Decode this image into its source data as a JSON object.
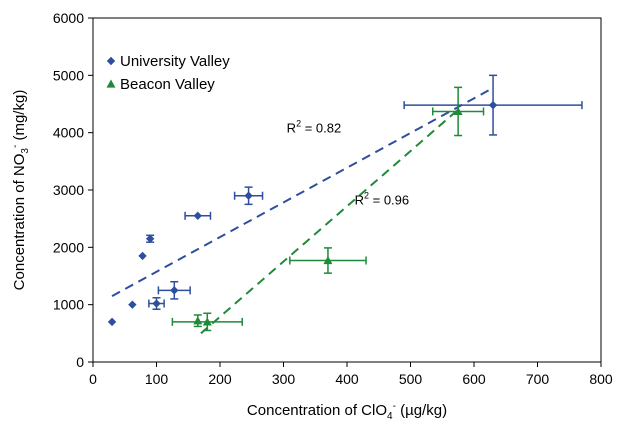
{
  "chart_data": {
    "type": "scatter",
    "xlabel": {
      "prefix": "Concentration of ClO",
      "sub": "4",
      "sup": "-",
      "suffix": " (µg/kg)"
    },
    "ylabel": {
      "prefix": "Concentration of NO",
      "sub": "3",
      "sup": "-",
      "suffix": " (mg/kg)"
    },
    "xlim": [
      0,
      800
    ],
    "ylim": [
      0,
      6000
    ],
    "xticks": [
      0,
      100,
      200,
      300,
      400,
      500,
      600,
      700,
      800
    ],
    "yticks": [
      0,
      1000,
      2000,
      3000,
      4000,
      5000,
      6000
    ],
    "grid": false,
    "legend_position": "top-left",
    "series": [
      {
        "name": "University Valley",
        "color": "#2E4E9E",
        "marker": "diamond",
        "points": [
          {
            "x": 30,
            "y": 700,
            "xerr": 0,
            "yerr": 0
          },
          {
            "x": 62,
            "y": 1000,
            "xerr": 0,
            "yerr": 0
          },
          {
            "x": 78,
            "y": 1850,
            "xerr": 0,
            "yerr": 0
          },
          {
            "x": 90,
            "y": 2150,
            "xerr": 0,
            "yerr": 60
          },
          {
            "x": 100,
            "y": 1020,
            "xerr": 12,
            "yerr": 100
          },
          {
            "x": 128,
            "y": 1250,
            "xerr": 25,
            "yerr": 150
          },
          {
            "x": 165,
            "y": 2550,
            "xerr": 20,
            "yerr": 0
          },
          {
            "x": 245,
            "y": 2900,
            "xerr": 22,
            "yerr": 150
          },
          {
            "x": 630,
            "y": 4480,
            "xerr": 140,
            "yerr": 520
          }
        ],
        "trendline": {
          "x": [
            30,
            630
          ],
          "y": [
            1150,
            4780
          ]
        },
        "r2_label": {
          "prefix": "R",
          "sup": "2",
          "suffix": " = 0.82",
          "x": 305,
          "y": 4000
        }
      },
      {
        "name": "Beacon Valley",
        "color": "#1F8A3A",
        "marker": "triangle",
        "points": [
          {
            "x": 165,
            "y": 720,
            "xerr": 0,
            "yerr": 100
          },
          {
            "x": 180,
            "y": 700,
            "xerr": 55,
            "yerr": 150
          },
          {
            "x": 370,
            "y": 1770,
            "xerr": 60,
            "yerr": 220
          },
          {
            "x": 575,
            "y": 4370,
            "xerr": 40,
            "yerr": 420
          }
        ],
        "trendline": {
          "x": [
            170,
            580
          ],
          "y": [
            500,
            4450
          ]
        },
        "r2_label": {
          "prefix": "R",
          "sup": "2",
          "suffix": " = 0.96",
          "x": 412,
          "y": 2750
        }
      }
    ]
  }
}
